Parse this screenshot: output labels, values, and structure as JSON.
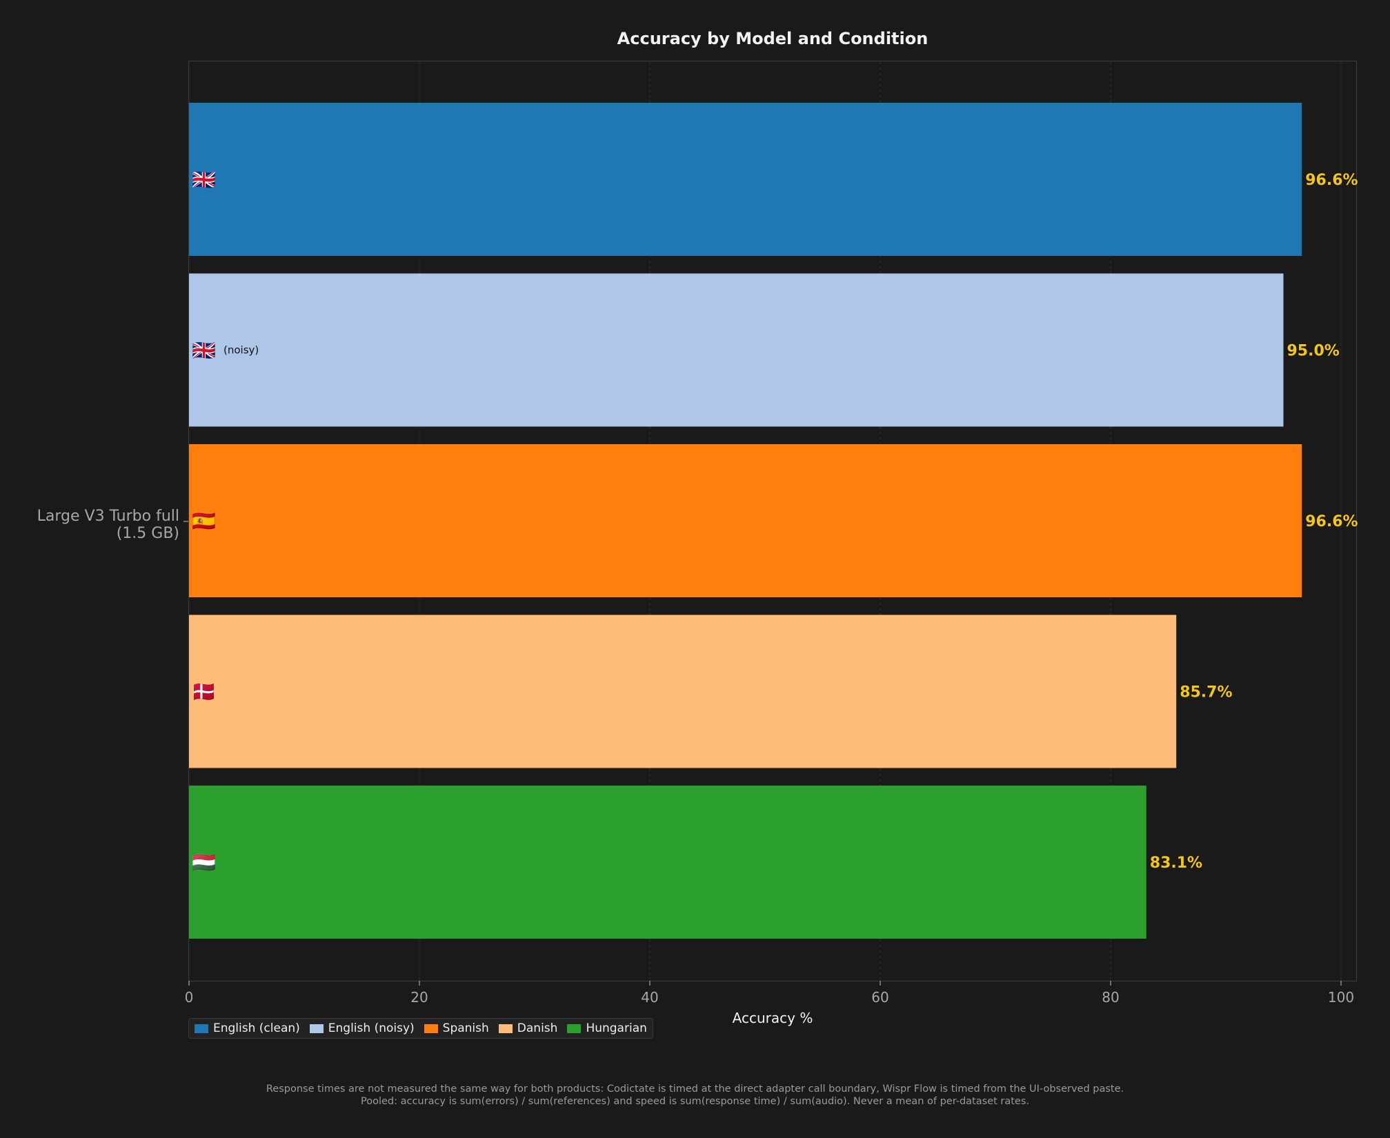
{
  "chart_data": {
    "type": "bar",
    "orientation": "horizontal",
    "title": "Accuracy by Model and Condition",
    "xlabel": "Accuracy %",
    "ylabel": "",
    "xlim": [
      0,
      100
    ],
    "xticks": [
      "0",
      "20",
      "40",
      "60",
      "80",
      "100"
    ],
    "grid": true,
    "legend_position": "bottom-left",
    "categories": [
      "Large V3 Turbo full\n(1.5 GB)"
    ],
    "series": [
      {
        "name": "English (clean)",
        "values": [
          96.6
        ],
        "value_label": "96.6%",
        "color": "#1f77b4",
        "bar_label": "🇬🇧"
      },
      {
        "name": "English (noisy)",
        "values": [
          95.0
        ],
        "value_label": "95.0%",
        "color": "#aec7e8",
        "bar_label": "🇬🇧",
        "bar_sublabel": "(noisy)"
      },
      {
        "name": "Spanish",
        "values": [
          96.6
        ],
        "value_label": "96.6%",
        "color": "#ff7f0e",
        "bar_label": "🇪🇸"
      },
      {
        "name": "Danish",
        "values": [
          85.7
        ],
        "value_label": "85.7%",
        "color": "#ffbb78",
        "bar_label": "🇩🇰"
      },
      {
        "name": "Hungarian",
        "values": [
          83.1
        ],
        "value_label": "83.1%",
        "color": "#2ca02c",
        "bar_label": "🇭🇺"
      }
    ],
    "value_label_color": "#f5c518"
  },
  "footnotes": [
    "Response times are not measured the same way for both products: Codictate is timed at the direct adapter call boundary, Wispr Flow is timed from the UI-observed paste.",
    "Pooled: accuracy is sum(errors) / sum(references) and speed is sum(response time) / sum(audio). Never a mean of per-dataset rates."
  ]
}
